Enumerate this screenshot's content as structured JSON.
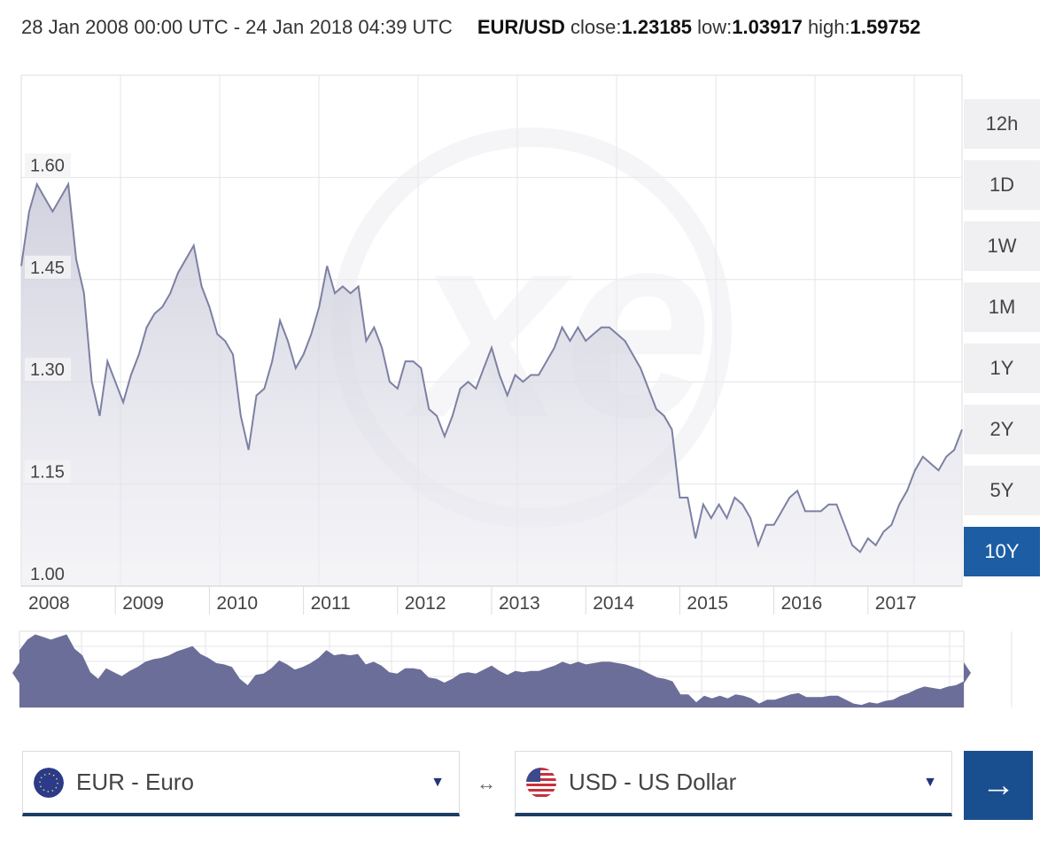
{
  "header": {
    "date_range": "28 Jan 2008 00:00 UTC - 24 Jan 2018 04:39 UTC",
    "pair": "EUR/USD",
    "close_label": "close:",
    "close": "1.23185",
    "low_label": "low:",
    "low": "1.03917",
    "high_label": "high:",
    "high": "1.59752"
  },
  "range_buttons": [
    {
      "label": "12h",
      "active": false
    },
    {
      "label": "1D",
      "active": false
    },
    {
      "label": "1W",
      "active": false
    },
    {
      "label": "1M",
      "active": false
    },
    {
      "label": "1Y",
      "active": false
    },
    {
      "label": "2Y",
      "active": false
    },
    {
      "label": "5Y",
      "active": false
    },
    {
      "label": "10Y",
      "active": true
    }
  ],
  "colors": {
    "accent": "#1d5da4",
    "line": "#7d80a3",
    "navigator_fill": "#6b6e98"
  },
  "chart_data": {
    "type": "area",
    "ylim": [
      1.0,
      1.75
    ],
    "yticks": [
      "1.00",
      "1.15",
      "1.30",
      "1.45",
      "1.60"
    ],
    "xticks": [
      "2008",
      "2009",
      "2010",
      "2011",
      "2012",
      "2013",
      "2014",
      "2015",
      "2016",
      "2017"
    ],
    "grid": true,
    "x": [
      "2008-01",
      "2008-02",
      "2008-03",
      "2008-04",
      "2008-05",
      "2008-06",
      "2008-07",
      "2008-08",
      "2008-09",
      "2008-10",
      "2008-11",
      "2008-12",
      "2009-01",
      "2009-02",
      "2009-03",
      "2009-04",
      "2009-05",
      "2009-06",
      "2009-07",
      "2009-08",
      "2009-09",
      "2009-10",
      "2009-11",
      "2009-12",
      "2010-01",
      "2010-02",
      "2010-03",
      "2010-04",
      "2010-05",
      "2010-06",
      "2010-07",
      "2010-08",
      "2010-09",
      "2010-10",
      "2010-11",
      "2010-12",
      "2011-01",
      "2011-02",
      "2011-03",
      "2011-04",
      "2011-05",
      "2011-06",
      "2011-07",
      "2011-08",
      "2011-09",
      "2011-10",
      "2011-11",
      "2011-12",
      "2012-01",
      "2012-02",
      "2012-03",
      "2012-04",
      "2012-05",
      "2012-06",
      "2012-07",
      "2012-08",
      "2012-09",
      "2012-10",
      "2012-11",
      "2012-12",
      "2013-01",
      "2013-02",
      "2013-03",
      "2013-04",
      "2013-05",
      "2013-06",
      "2013-07",
      "2013-08",
      "2013-09",
      "2013-10",
      "2013-11",
      "2013-12",
      "2014-01",
      "2014-02",
      "2014-03",
      "2014-04",
      "2014-05",
      "2014-06",
      "2014-07",
      "2014-08",
      "2014-09",
      "2014-10",
      "2014-11",
      "2014-12",
      "2015-01",
      "2015-02",
      "2015-03",
      "2015-04",
      "2015-05",
      "2015-06",
      "2015-07",
      "2015-08",
      "2015-09",
      "2015-10",
      "2015-11",
      "2015-12",
      "2016-01",
      "2016-02",
      "2016-03",
      "2016-04",
      "2016-05",
      "2016-06",
      "2016-07",
      "2016-08",
      "2016-09",
      "2016-10",
      "2016-11",
      "2016-12",
      "2017-01",
      "2017-02",
      "2017-03",
      "2017-04",
      "2017-05",
      "2017-06",
      "2017-07",
      "2017-08",
      "2017-09",
      "2017-10",
      "2017-11",
      "2017-12",
      "2018-01"
    ],
    "y": [
      1.47,
      1.55,
      1.59,
      1.57,
      1.55,
      1.57,
      1.59,
      1.48,
      1.43,
      1.3,
      1.25,
      1.33,
      1.3,
      1.27,
      1.31,
      1.34,
      1.38,
      1.4,
      1.41,
      1.43,
      1.46,
      1.48,
      1.5,
      1.44,
      1.41,
      1.37,
      1.36,
      1.34,
      1.25,
      1.2,
      1.28,
      1.29,
      1.33,
      1.39,
      1.36,
      1.32,
      1.34,
      1.37,
      1.41,
      1.47,
      1.43,
      1.44,
      1.43,
      1.44,
      1.36,
      1.38,
      1.35,
      1.3,
      1.29,
      1.33,
      1.33,
      1.32,
      1.26,
      1.25,
      1.22,
      1.25,
      1.29,
      1.3,
      1.29,
      1.32,
      1.35,
      1.31,
      1.28,
      1.31,
      1.3,
      1.31,
      1.31,
      1.33,
      1.35,
      1.38,
      1.36,
      1.38,
      1.36,
      1.37,
      1.38,
      1.38,
      1.37,
      1.36,
      1.34,
      1.32,
      1.29,
      1.26,
      1.25,
      1.23,
      1.13,
      1.13,
      1.07,
      1.12,
      1.1,
      1.12,
      1.1,
      1.13,
      1.12,
      1.1,
      1.06,
      1.09,
      1.09,
      1.11,
      1.13,
      1.14,
      1.11,
      1.11,
      1.11,
      1.12,
      1.12,
      1.09,
      1.06,
      1.05,
      1.07,
      1.06,
      1.08,
      1.09,
      1.12,
      1.14,
      1.17,
      1.19,
      1.18,
      1.17,
      1.19,
      1.2,
      1.23
    ]
  },
  "from_currency": {
    "label": "EUR - Euro",
    "flag": "eu-flag-icon"
  },
  "to_currency": {
    "label": "USD - US Dollar",
    "flag": "us-flag-icon"
  },
  "swap_icon": "↔",
  "convert_icon": "→"
}
